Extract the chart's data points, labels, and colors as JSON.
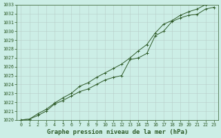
{
  "xlabel": "Graphe pression niveau de la mer (hPa)",
  "bg_color": "#cceee6",
  "grid_color": "#b8ccc8",
  "line_color": "#2d5a27",
  "x": [
    0,
    1,
    2,
    3,
    4,
    5,
    6,
    7,
    8,
    9,
    10,
    11,
    12,
    13,
    14,
    15,
    16,
    17,
    18,
    19,
    20,
    21,
    22,
    23
  ],
  "series1": [
    1020.0,
    1020.1,
    1020.5,
    1021.0,
    1021.8,
    1022.2,
    1022.7,
    1023.2,
    1023.5,
    1024.0,
    1024.5,
    1024.8,
    1025.0,
    1026.8,
    1027.0,
    1027.5,
    1029.5,
    1030.0,
    1031.1,
    1031.5,
    1031.8,
    1031.9,
    1032.5,
    1032.7
  ],
  "series2": [
    1020.0,
    1020.1,
    1020.7,
    1021.2,
    1021.9,
    1022.5,
    1023.0,
    1023.8,
    1024.2,
    1024.8,
    1025.3,
    1025.8,
    1026.3,
    1027.0,
    1027.8,
    1028.5,
    1029.8,
    1030.8,
    1031.2,
    1031.8,
    1032.2,
    1032.5,
    1033.0,
    1033.2
  ],
  "ylim": [
    1020,
    1033
  ],
  "xlim": [
    0,
    23
  ],
  "yticks": [
    1020,
    1021,
    1022,
    1023,
    1024,
    1025,
    1026,
    1027,
    1028,
    1029,
    1030,
    1031,
    1032,
    1033
  ],
  "xticks": [
    0,
    1,
    2,
    3,
    4,
    5,
    6,
    7,
    8,
    9,
    10,
    11,
    12,
    13,
    14,
    15,
    16,
    17,
    18,
    19,
    20,
    21,
    22,
    23
  ],
  "tick_fontsize": 4.8,
  "label_fontsize": 6.5
}
